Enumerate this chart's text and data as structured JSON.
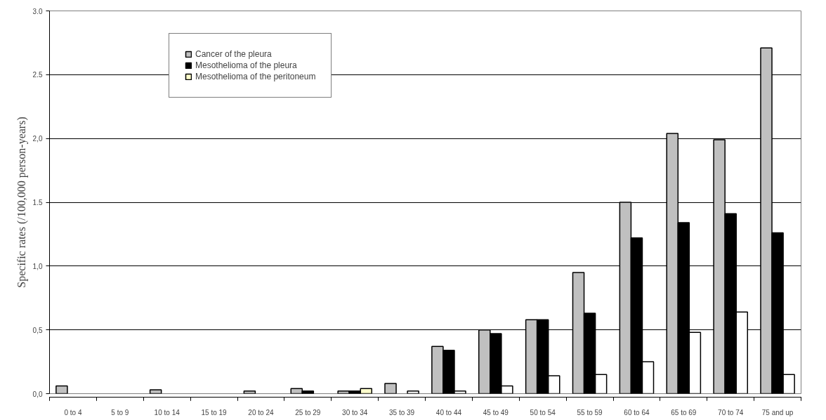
{
  "chart_data": {
    "type": "bar",
    "ylabel": "Specific rates (/100,000 person-years)",
    "categories": [
      "0 to 4",
      "5 to 9",
      "10 to 14",
      "15 to 19",
      "20 to 24",
      "25 to 29",
      "30 to 34",
      "35 to 39",
      "40 to 44",
      "45 to 49",
      "50 to 54",
      "55 to 59",
      "60 to 64",
      "65 to 69",
      "70 to 74",
      "75 and up"
    ],
    "series": [
      {
        "name": "Cancer of the pleura",
        "color": "#c0c0c0",
        "values": [
          0.06,
          null,
          0.03,
          null,
          0.02,
          0.04,
          0.02,
          0.08,
          0.37,
          0.5,
          0.58,
          0.95,
          1.5,
          2.04,
          1.99,
          2.71
        ]
      },
      {
        "name": "Mesothelioma of the pleura",
        "color": "#000000",
        "values": [
          null,
          null,
          null,
          null,
          null,
          0.02,
          0.02,
          null,
          0.34,
          0.47,
          0.58,
          0.63,
          1.22,
          1.34,
          1.41,
          1.26
        ]
      },
      {
        "name": "Mesothelioma of the peritoneum",
        "color": "#ffffff",
        "colors": [
          "#ffffff",
          "#ffffff",
          "#ffffff",
          "#ffffff",
          "#ffffff",
          "#ffffff",
          "#ffffcc",
          "#ffffff",
          "#ffffff",
          "#ffffff",
          "#ffffff",
          "#ffffff",
          "#ffffff",
          "#ffffff",
          "#ffffff",
          "#ffffff"
        ],
        "values": [
          null,
          null,
          null,
          null,
          null,
          null,
          0.04,
          0.02,
          0.02,
          0.06,
          0.14,
          0.15,
          0.25,
          0.48,
          0.64,
          0.15
        ]
      }
    ],
    "ylim": [
      0,
      3.0
    ],
    "yticks": [
      {
        "value": 0,
        "label": "0,0"
      },
      {
        "value": 0.5,
        "label": "0,5"
      },
      {
        "value": 1.0,
        "label": "1,0"
      },
      {
        "value": 1.5,
        "label": "1.5"
      },
      {
        "value": 2.0,
        "label": "2,0"
      },
      {
        "value": 2.5,
        "label": "2.5"
      },
      {
        "value": 3.0,
        "label": "3.0"
      }
    ],
    "grid": "y",
    "legend": "top left"
  }
}
